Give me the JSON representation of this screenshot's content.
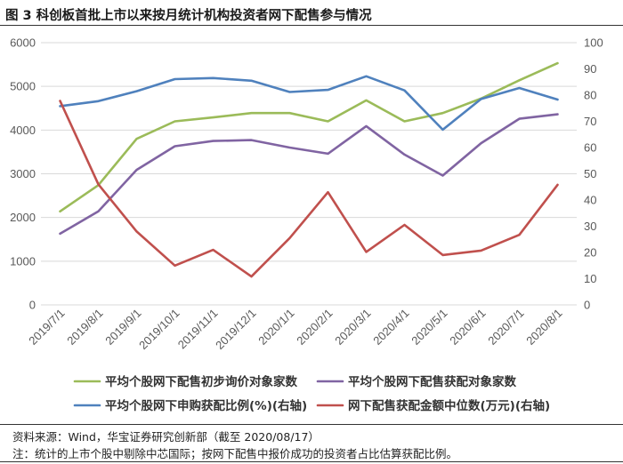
{
  "header": {
    "title": "图 3 科创板首批上市以来按月统计机构投资者网下配售参与情况"
  },
  "footer": {
    "source": "资料来源：Wind，华宝证券研究创新部（截至 2020/08/17）",
    "note": "注：统计的上市个股中剔除中芯国际；按网下配售中报价成功的投资者占比估算获配比例。"
  },
  "chart_data": {
    "type": "line",
    "categories": [
      "2019/7/1",
      "2019/8/1",
      "2019/9/1",
      "2019/10/1",
      "2019/11/1",
      "2019/12/1",
      "2020/1/1",
      "2020/2/1",
      "2020/3/1",
      "2020/4/1",
      "2020/5/1",
      "2020/6/1",
      "2020/7/1",
      "2020/8/1"
    ],
    "ylim": [
      0,
      6000
    ],
    "y_ticks": [
      0,
      1000,
      2000,
      3000,
      4000,
      5000,
      6000
    ],
    "y2lim": [
      0,
      100
    ],
    "y2_ticks": [
      0,
      10,
      20,
      30,
      40,
      50,
      60,
      70,
      80,
      90,
      100
    ],
    "grid": true,
    "legend_position": "bottom",
    "series": [
      {
        "name": "平均个股网下配售初步询价对象家数",
        "axis": "left",
        "color": "#9bbb59",
        "values": [
          2140,
          2740,
          3800,
          4200,
          4290,
          4390,
          4390,
          4200,
          4680,
          4200,
          4390,
          4720,
          5140,
          5530
        ]
      },
      {
        "name": "平均个股网下配售获配对象家数",
        "axis": "left",
        "color": "#8064a2",
        "values": [
          1630,
          2140,
          3090,
          3630,
          3750,
          3770,
          3600,
          3460,
          4090,
          3440,
          2960,
          3700,
          4260,
          4360
        ]
      },
      {
        "name": "平均个股网下申购获配比例(%)(右轴)",
        "axis": "right",
        "color": "#4f81bd",
        "values": [
          75.8,
          77.7,
          81.5,
          86.1,
          86.5,
          85.5,
          81.2,
          82.0,
          87.2,
          81.8,
          66.8,
          78.5,
          82.7,
          78.3
        ]
      },
      {
        "name": "网下配售获配金额中位数(万元)(右轴)",
        "axis": "right",
        "color": "#c0504d",
        "values": [
          77.8,
          46.0,
          28.0,
          15.0,
          21.0,
          10.8,
          25.5,
          43.0,
          20.2,
          30.5,
          19.0,
          20.7,
          26.7,
          45.8
        ]
      }
    ]
  }
}
